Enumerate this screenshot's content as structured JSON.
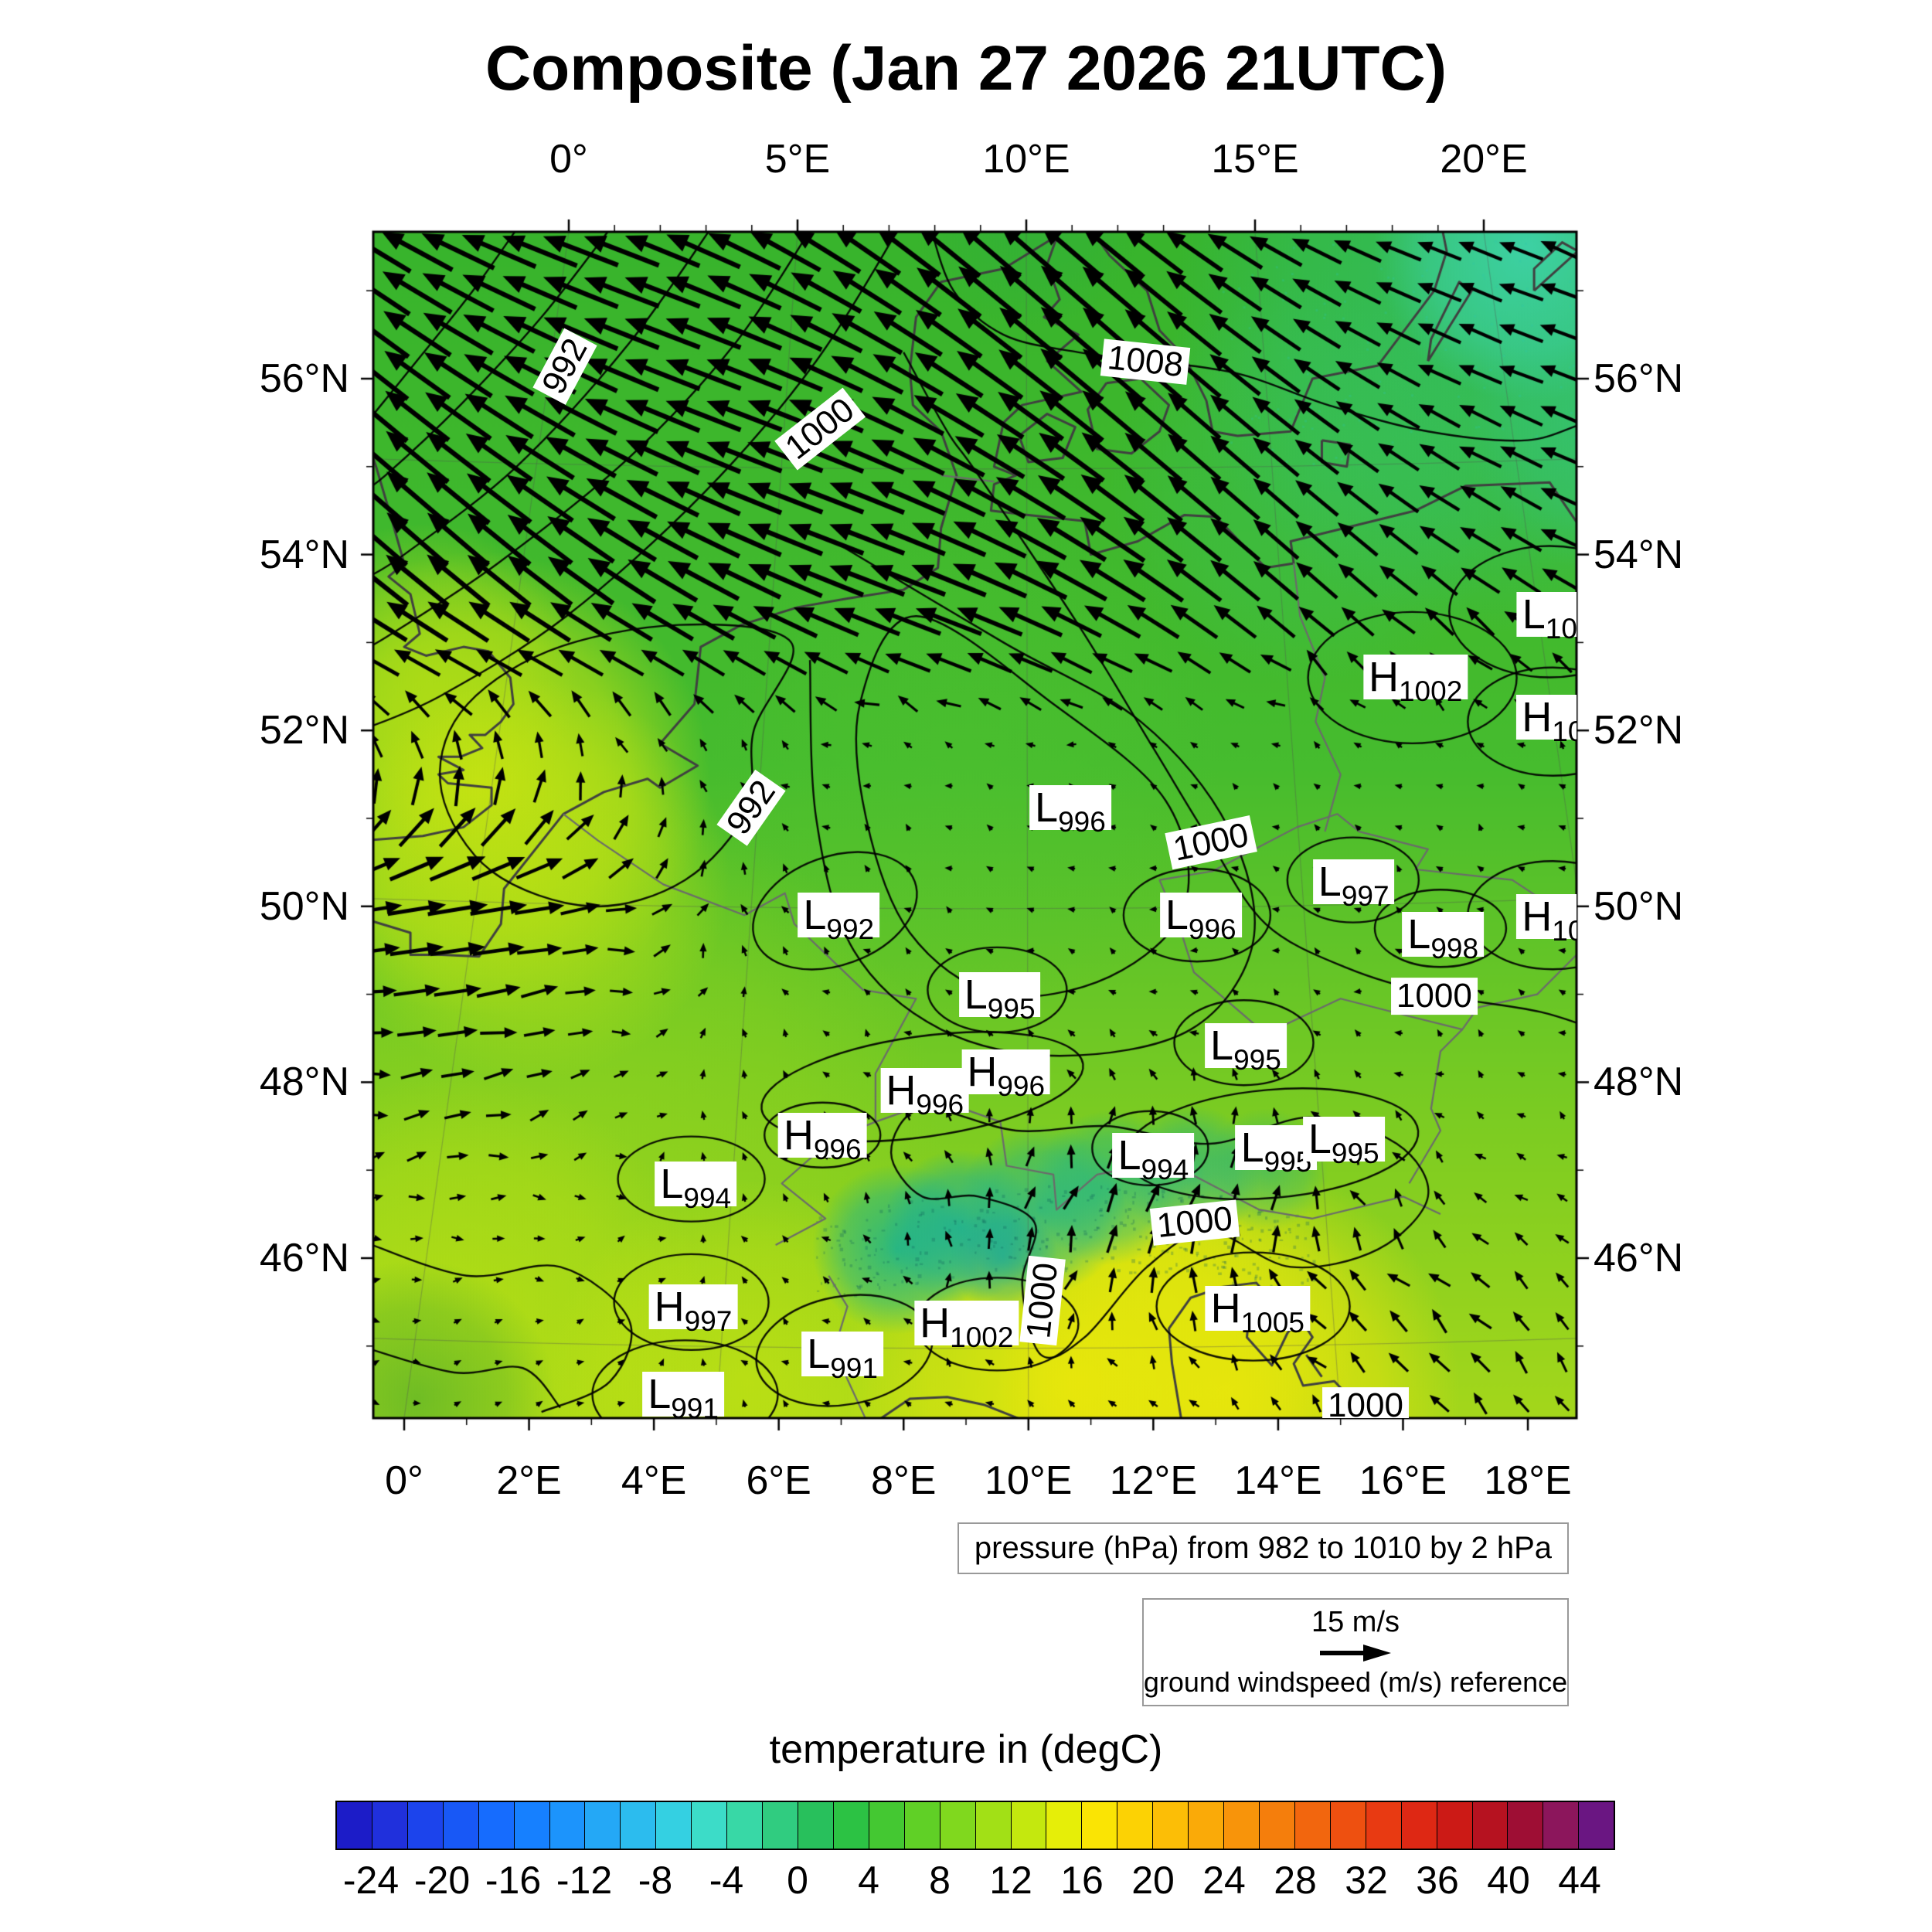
{
  "chart_data": {
    "type": "heatmap",
    "title": "Composite (Jan 27 2026 21UTC)",
    "axes": {
      "top_lon_ticks": [
        {
          "lon": 0,
          "label": "0°"
        },
        {
          "lon": 5,
          "label": "5°E"
        },
        {
          "lon": 10,
          "label": "10°E"
        },
        {
          "lon": 15,
          "label": "15°E"
        },
        {
          "lon": 20,
          "label": "20°E"
        }
      ],
      "bottom_lon_ticks": [
        {
          "lon": 0,
          "label": "0°"
        },
        {
          "lon": 2,
          "label": "2°E"
        },
        {
          "lon": 4,
          "label": "4°E"
        },
        {
          "lon": 6,
          "label": "6°E"
        },
        {
          "lon": 8,
          "label": "8°E"
        },
        {
          "lon": 10,
          "label": "10°E"
        },
        {
          "lon": 12,
          "label": "12°E"
        },
        {
          "lon": 14,
          "label": "14°E"
        },
        {
          "lon": 16,
          "label": "16°E"
        },
        {
          "lon": 18,
          "label": "18°E"
        }
      ],
      "lat_ticks": [
        {
          "lat": 56,
          "label": "56°N"
        },
        {
          "lat": 54,
          "label": "54°N"
        },
        {
          "lat": 52,
          "label": "52°N"
        },
        {
          "lat": 50,
          "label": "50°N"
        },
        {
          "lat": 48,
          "label": "48°N"
        },
        {
          "lat": 46,
          "label": "46°N"
        }
      ]
    },
    "pressure": {
      "caption": "pressure (hPa) from 982 to 1010 by 2 hPa",
      "contour_interval_hPa": 2,
      "contour_min_hPa": 982,
      "contour_max_hPa": 1010,
      "contour_labels": [
        {
          "text": "992",
          "lon": 2.57,
          "lat": 56.14,
          "rot": -62
        },
        {
          "text": "1000",
          "lon": 6.66,
          "lat": 55.43,
          "rot": -38
        },
        {
          "text": "1008",
          "lon": 11.87,
          "lat": 56.19,
          "rot": 6
        },
        {
          "text": "992",
          "lon": 5.56,
          "lat": 51.12,
          "rot": -55
        },
        {
          "text": "1000",
          "lon": 12.92,
          "lat": 50.73,
          "rot": -12
        },
        {
          "text": "1000",
          "lon": 16.5,
          "lat": 48.98,
          "rot": 0
        },
        {
          "text": "1000",
          "lon": 12.66,
          "lat": 46.4,
          "rot": -6
        },
        {
          "text": "1000",
          "lon": 10.23,
          "lat": 45.52,
          "rot": -84
        },
        {
          "text": "1000",
          "lon": 15.4,
          "lat": 44.32,
          "rot": 0
        }
      ],
      "centers": [
        {
          "letter": "L",
          "value": "10",
          "lon": 18.35,
          "lat": 53.32
        },
        {
          "letter": "H",
          "value": "1002",
          "lon": 16.2,
          "lat": 52.61
        },
        {
          "letter": "H",
          "value": "10",
          "lon": 18.4,
          "lat": 52.15
        },
        {
          "letter": "L",
          "value": "996",
          "lon": 10.67,
          "lat": 51.12
        },
        {
          "letter": "L",
          "value": "997",
          "lon": 15.21,
          "lat": 50.28
        },
        {
          "letter": "L",
          "value": "992",
          "lon": 6.96,
          "lat": 49.9
        },
        {
          "letter": "L",
          "value": "996",
          "lon": 12.76,
          "lat": 49.9
        },
        {
          "letter": "L",
          "value": "998",
          "lon": 16.64,
          "lat": 49.68
        },
        {
          "letter": "H",
          "value": "10",
          "lon": 18.4,
          "lat": 49.88
        },
        {
          "letter": "L",
          "value": "995",
          "lon": 9.54,
          "lat": 49.0
        },
        {
          "letter": "L",
          "value": "995",
          "lon": 13.48,
          "lat": 48.42
        },
        {
          "letter": "H",
          "value": "996",
          "lon": 9.64,
          "lat": 48.12
        },
        {
          "letter": "H",
          "value": "996",
          "lon": 8.34,
          "lat": 47.91
        },
        {
          "letter": "H",
          "value": "996",
          "lon": 6.7,
          "lat": 47.4
        },
        {
          "letter": "L",
          "value": "994",
          "lon": 12.0,
          "lat": 47.17
        },
        {
          "letter": "L",
          "value": "995",
          "lon": 13.97,
          "lat": 47.26
        },
        {
          "letter": "L",
          "value": "995",
          "lon": 15.05,
          "lat": 47.35
        },
        {
          "letter": "L",
          "value": "994",
          "lon": 4.67,
          "lat": 46.84
        },
        {
          "letter": "H",
          "value": "997",
          "lon": 4.63,
          "lat": 45.45
        },
        {
          "letter": "H",
          "value": "1002",
          "lon": 9.01,
          "lat": 45.26
        },
        {
          "letter": "H",
          "value": "1005",
          "lon": 13.67,
          "lat": 45.43
        },
        {
          "letter": "L",
          "value": "991",
          "lon": 7.02,
          "lat": 44.91
        },
        {
          "letter": "L",
          "value": "991",
          "lon": 4.47,
          "lat": 44.45
        }
      ]
    },
    "wind": {
      "reference_label": "15 m/s",
      "caption": "ground windspeed (m/s) reference"
    },
    "colorbar": {
      "title": "temperature in (degC)",
      "unit": "degC",
      "min": -26,
      "max": 46,
      "step": 2,
      "tick_values": [
        -24,
        -20,
        -16,
        -12,
        -8,
        -4,
        0,
        4,
        8,
        12,
        16,
        20,
        24,
        28,
        32,
        36,
        40,
        44
      ],
      "colors": [
        "#1c1cc8",
        "#2030dc",
        "#1c44ec",
        "#1858f6",
        "#166cfe",
        "#1680ff",
        "#1c94fc",
        "#24a8f6",
        "#2cbcee",
        "#34d0e2",
        "#3cdcc8",
        "#38d8a6",
        "#30cc80",
        "#28c05c",
        "#2cc244",
        "#44c832",
        "#60d026",
        "#80d81e",
        "#a2e016",
        "#c4e80e",
        "#e6ee08",
        "#fae404",
        "#fcd204",
        "#fcbe06",
        "#faaa08",
        "#f8940a",
        "#f57e0c",
        "#f2660e",
        "#ee5010",
        "#e83a12",
        "#de2814",
        "#cc1a16",
        "#b61220",
        "#9e0e34",
        "#8c165c",
        "#6a1682"
      ]
    }
  }
}
